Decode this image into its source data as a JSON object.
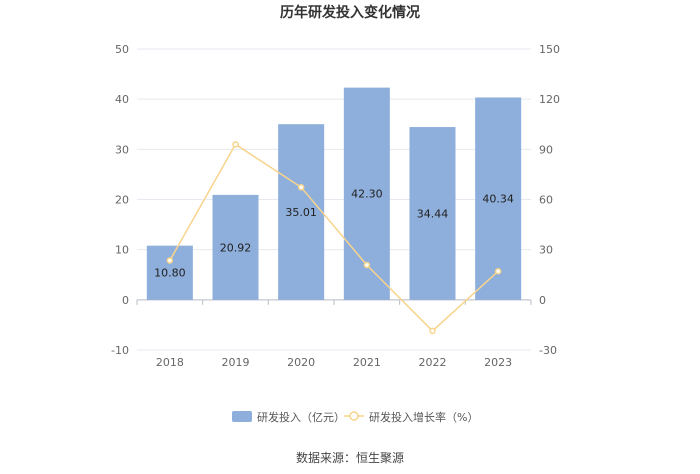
{
  "chart_data": {
    "type": "bar",
    "title": "历年研发投入变化情况",
    "categories": [
      "2018",
      "2019",
      "2020",
      "2021",
      "2022",
      "2023"
    ],
    "series": [
      {
        "name": "研发投入（亿元）",
        "type": "bar",
        "axis": "left",
        "values": [
          10.8,
          20.92,
          35.01,
          42.3,
          34.44,
          40.34
        ],
        "labels": [
          "10.80",
          "20.92",
          "35.01",
          "42.30",
          "34.44",
          "40.34"
        ],
        "color": "#8eaedb"
      },
      {
        "name": "研发投入增长率（%）",
        "type": "line",
        "axis": "right",
        "values": [
          23.5,
          93.0,
          67.3,
          20.8,
          -18.6,
          17.1
        ],
        "color": "#f8d48c"
      }
    ],
    "y_left": {
      "min": -10,
      "max": 50,
      "ticks": [
        "50",
        "40",
        "30",
        "20",
        "10",
        "0",
        "-10"
      ]
    },
    "y_right": {
      "min": -30,
      "max": 150,
      "ticks": [
        "150",
        "120",
        "90",
        "60",
        "30",
        "0",
        "-30"
      ]
    },
    "grid": true,
    "legend_position": "bottom"
  },
  "source": "数据来源：恒生聚源"
}
